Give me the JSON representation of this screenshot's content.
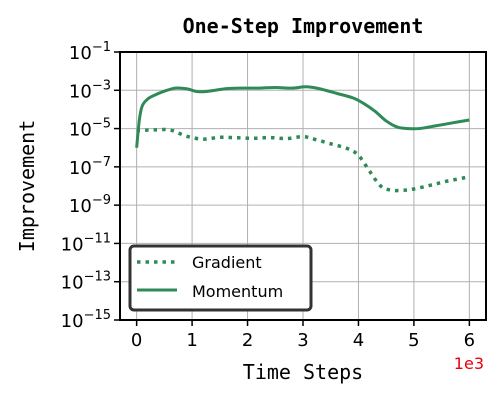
{
  "chart_data": {
    "type": "line",
    "title": "One-Step Improvement",
    "xlabel": "Time Steps",
    "ylabel": "Improvement",
    "x_multiplier_label": "1e3",
    "xlim": [
      -0.3,
      6.3
    ],
    "ylim_log10": [
      -15,
      -1
    ],
    "yscale": "log",
    "grid": true,
    "legend_position": "lower-left",
    "x_ticks": [
      0,
      1,
      2,
      3,
      4,
      5,
      6
    ],
    "x_tick_labels": [
      "0",
      "1",
      "2",
      "3",
      "4",
      "5",
      "6"
    ],
    "y_tick_exponents": [
      -1,
      -3,
      -5,
      -7,
      -9,
      -11,
      -13,
      -15
    ],
    "y_tick_labels": [
      {
        "base": "10",
        "exp": "−1"
      },
      {
        "base": "10",
        "exp": "−3"
      },
      {
        "base": "10",
        "exp": "−5"
      },
      {
        "base": "10",
        "exp": "−7"
      },
      {
        "base": "10",
        "exp": "−9"
      },
      {
        "base": "10",
        "exp": "−11"
      },
      {
        "base": "10",
        "exp": "−13"
      },
      {
        "base": "10",
        "exp": "−15"
      }
    ],
    "series": [
      {
        "name": "Gradient",
        "style": "dotted",
        "color": "#2e8b57",
        "x": [
          0,
          0.05,
          0.3,
          0.6,
          0.9,
          1.2,
          1.5,
          1.8,
          2.1,
          2.4,
          2.7,
          3.0,
          3.2,
          3.5,
          3.8,
          4.0,
          4.2,
          4.4,
          4.6,
          4.8,
          5.0,
          5.3,
          5.6,
          6.0
        ],
        "y": [
          8e-06,
          8e-06,
          8.5e-06,
          8.5e-06,
          4e-06,
          2.8e-06,
          3.5e-06,
          3.3e-06,
          3.1e-06,
          3.4e-06,
          3e-06,
          3.8e-06,
          2.8e-06,
          1.6e-06,
          9e-07,
          4e-07,
          6e-08,
          1e-08,
          6e-09,
          6e-09,
          7e-09,
          1.1e-08,
          1.8e-08,
          3e-08
        ]
      },
      {
        "name": "Momentum",
        "style": "solid",
        "color": "#2e8b57",
        "x": [
          0,
          0.05,
          0.1,
          0.2,
          0.35,
          0.5,
          0.7,
          0.9,
          1.1,
          1.3,
          1.6,
          1.9,
          2.2,
          2.5,
          2.8,
          3.0,
          3.1,
          3.3,
          3.6,
          3.9,
          4.1,
          4.3,
          4.5,
          4.7,
          4.9,
          5.1,
          5.4,
          5.7,
          6.0
        ],
        "y": [
          1e-06,
          3e-05,
          0.00015,
          0.00035,
          0.0006,
          0.0009,
          0.0013,
          0.0012,
          0.00085,
          0.0009,
          0.0012,
          0.0013,
          0.0013,
          0.0014,
          0.0013,
          0.0015,
          0.0015,
          0.0012,
          0.0007,
          0.0004,
          0.0002,
          8e-05,
          2.5e-05,
          1.2e-05,
          1e-05,
          1e-05,
          1.4e-05,
          2e-05,
          2.8e-05
        ]
      }
    ]
  }
}
